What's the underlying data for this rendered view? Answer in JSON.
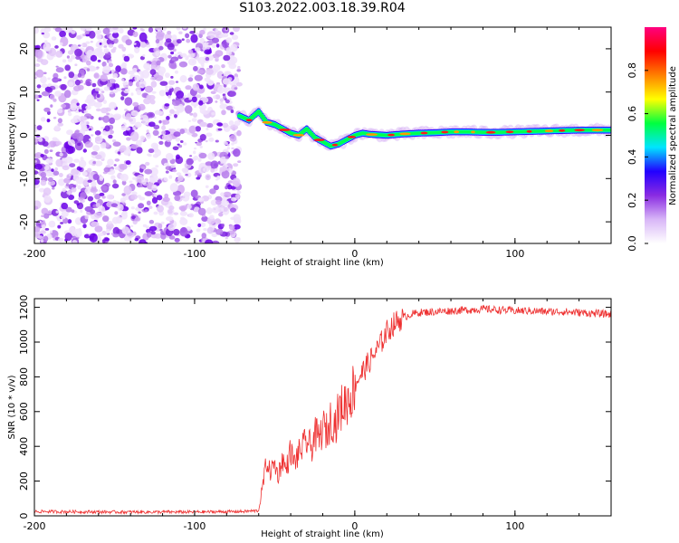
{
  "title": "S103.2022.003.18.39.R04",
  "chart_data": [
    {
      "type": "heatmap",
      "xlabel": "Height of straight line (km)",
      "ylabel": "Frequency (Hz)",
      "xlim": [
        -200,
        160
      ],
      "ylim": [
        -25,
        25
      ],
      "x_ticks": [
        -200,
        -100,
        0,
        100
      ],
      "y_ticks": [
        -20,
        -10,
        0,
        10,
        20
      ],
      "colorbar": {
        "label": "Normalized spectral amplitude",
        "range": [
          0,
          1
        ],
        "ticks": [
          0.0,
          0.2,
          0.4,
          0.6,
          0.8
        ],
        "colors": [
          "#ffffff",
          "#d8b6f7",
          "#8a2be2",
          "#2200ff",
          "#00e5ff",
          "#00ff40",
          "#ffff00",
          "#ff8000",
          "#ff0000",
          "#ff0080"
        ]
      },
      "noise_region_x": [
        -200,
        -72
      ],
      "signal_ridge": {
        "x": [
          -72,
          -66,
          -60,
          -55,
          -50,
          -45,
          -40,
          -35,
          -30,
          -25,
          -20,
          -15,
          -10,
          -5,
          0,
          5,
          10,
          20,
          30,
          40,
          50,
          60,
          70,
          80,
          90,
          100,
          110,
          120,
          130,
          140,
          150,
          160
        ],
        "freq": [
          4.5,
          3.5,
          5.5,
          3.0,
          2.5,
          1.5,
          0.5,
          0.0,
          1.5,
          -0.5,
          -1.5,
          -2.5,
          -2.0,
          -1.0,
          0.0,
          0.5,
          0.2,
          0.0,
          0.3,
          0.5,
          0.6,
          0.8,
          0.8,
          0.7,
          0.7,
          0.8,
          0.9,
          1.0,
          1.1,
          1.2,
          1.2,
          1.2
        ]
      }
    },
    {
      "type": "line",
      "xlabel": "Height of straight line (km)",
      "ylabel": "SNR (10 * v/v)",
      "xlim": [
        -200,
        160
      ],
      "ylim": [
        0,
        1250
      ],
      "x_ticks": [
        -200,
        -100,
        0,
        100
      ],
      "y_ticks": [
        0,
        200,
        400,
        600,
        800,
        1000,
        1200
      ],
      "series": [
        {
          "color": "#ee3030",
          "x": [
            -200,
            -150,
            -100,
            -70,
            -60,
            -57,
            -55,
            -53,
            -50,
            -48,
            -45,
            -43,
            -40,
            -38,
            -35,
            -32,
            -30,
            -27,
            -25,
            -22,
            -20,
            -17,
            -15,
            -12,
            -10,
            -7,
            -5,
            -2,
            0,
            5,
            10,
            15,
            20,
            25,
            30,
            35,
            40,
            50,
            60,
            70,
            80,
            90,
            100,
            110,
            120,
            130,
            140,
            150,
            160
          ],
          "values": [
            25,
            22,
            22,
            25,
            30,
            200,
            320,
            250,
            300,
            230,
            330,
            260,
            380,
            300,
            360,
            400,
            430,
            390,
            470,
            440,
            510,
            480,
            560,
            530,
            600,
            640,
            660,
            700,
            760,
            830,
            900,
            970,
            1060,
            1110,
            1140,
            1160,
            1170,
            1175,
            1180,
            1185,
            1190,
            1185,
            1180,
            1180,
            1175,
            1175,
            1170,
            1165,
            1160
          ]
        }
      ]
    }
  ]
}
